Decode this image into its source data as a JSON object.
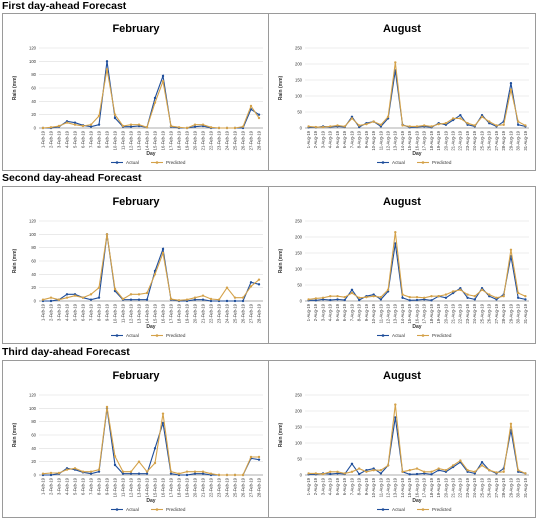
{
  "sections": [
    {
      "title": "First day-ahead Forecast"
    },
    {
      "title": "Second day-ahead Forecast"
    },
    {
      "title": "Third day-ahead Forecast"
    }
  ],
  "colors": {
    "actual": "#1f4e9b",
    "predicted": "#d4a24a",
    "grid": "#dedede",
    "axis": "#999999"
  },
  "chart_data": [
    {
      "type": "line",
      "title": "February",
      "xlabel": "Day",
      "ylabel": "Rain (mm)",
      "ylim": [
        0,
        120
      ],
      "yticks": [
        0,
        20,
        40,
        60,
        80,
        100,
        120
      ],
      "grid": true,
      "legend": "bottom",
      "categories": [
        "1-Feb-19",
        "2-Feb-19",
        "3-Feb-19",
        "4-Feb-19",
        "5-Feb-19",
        "6-Feb-19",
        "7-Feb-19",
        "8-Feb-19",
        "9-Feb-19",
        "10-Feb-19",
        "11-Feb-19",
        "12-Feb-19",
        "13-Feb-19",
        "14-Feb-19",
        "15-Feb-19",
        "16-Feb-19",
        "17-Feb-19",
        "18-Feb-19",
        "19-Feb-19",
        "20-Feb-19",
        "21-Feb-19",
        "22-Feb-19",
        "23-Feb-19",
        "24-Feb-19",
        "25-Feb-19",
        "26-Feb-19",
        "27-Feb-19",
        "28-Feb-19"
      ],
      "series": [
        {
          "name": "Actual",
          "values": [
            0,
            0,
            2,
            10,
            8,
            4,
            2,
            5,
            100,
            15,
            2,
            2,
            3,
            1,
            45,
            78,
            2,
            0,
            0,
            2,
            3,
            0,
            0,
            0,
            0,
            0,
            28,
            20
          ]
        },
        {
          "name": "Predicted",
          "values": [
            0,
            1,
            3,
            8,
            5,
            3,
            5,
            18,
            88,
            20,
            3,
            5,
            5,
            1,
            38,
            70,
            3,
            1,
            0,
            5,
            5,
            1,
            0,
            0,
            0,
            2,
            33,
            15
          ]
        }
      ]
    },
    {
      "type": "line",
      "title": "August",
      "xlabel": "Day",
      "ylabel": "Rain (mm)",
      "ylim": [
        0,
        250
      ],
      "yticks": [
        0,
        50,
        100,
        150,
        200,
        250
      ],
      "grid": true,
      "legend": "bottom",
      "categories": [
        "1-Aug-19",
        "2-Aug-19",
        "3-Aug-19",
        "4-Aug-19",
        "5-Aug-19",
        "6-Aug-19",
        "7-Aug-19",
        "8-Aug-19",
        "9-Aug-19",
        "10-Aug-19",
        "11-Aug-19",
        "12-Aug-19",
        "13-Aug-19",
        "14-Aug-19",
        "15-Aug-19",
        "16-Aug-19",
        "17-Aug-19",
        "18-Aug-19",
        "19-Aug-19",
        "20-Aug-19",
        "21-Aug-19",
        "22-Aug-19",
        "23-Aug-19",
        "24-Aug-19",
        "25-Aug-19",
        "26-Aug-19",
        "27-Aug-19",
        "28-Aug-19",
        "29-Aug-19",
        "30-Aug-19",
        "31-Aug-19"
      ],
      "series": [
        {
          "name": "Actual",
          "values": [
            2,
            2,
            5,
            3,
            5,
            3,
            35,
            3,
            15,
            20,
            5,
            30,
            180,
            10,
            2,
            3,
            5,
            2,
            15,
            10,
            25,
            40,
            10,
            5,
            40,
            15,
            5,
            20,
            140,
            10,
            5
          ]
        },
        {
          "name": "Predicted",
          "values": [
            5,
            3,
            3,
            5,
            8,
            5,
            30,
            8,
            12,
            20,
            10,
            35,
            205,
            8,
            5,
            5,
            8,
            5,
            12,
            15,
            30,
            30,
            15,
            8,
            35,
            20,
            8,
            10,
            120,
            20,
            8
          ]
        }
      ]
    },
    {
      "type": "line",
      "title": "February",
      "xlabel": "Day",
      "ylabel": "Rain (mm)",
      "ylim": [
        0,
        120
      ],
      "yticks": [
        0,
        20,
        40,
        60,
        80,
        100,
        120
      ],
      "grid": true,
      "legend": "bottom",
      "categories": [
        "1-Feb-19",
        "2-Feb-19",
        "3-Feb-19",
        "4-Feb-19",
        "5-Feb-19",
        "6-Feb-19",
        "7-Feb-19",
        "8-Feb-19",
        "9-Feb-19",
        "10-Feb-19",
        "11-Feb-19",
        "12-Feb-19",
        "13-Feb-19",
        "14-Feb-19",
        "15-Feb-19",
        "16-Feb-19",
        "17-Feb-19",
        "18-Feb-19",
        "19-Feb-19",
        "20-Feb-19",
        "21-Feb-19",
        "22-Feb-19",
        "23-Feb-19",
        "24-Feb-19",
        "25-Feb-19",
        "26-Feb-19",
        "27-Feb-19",
        "28-Feb-19"
      ],
      "series": [
        {
          "name": "Actual",
          "values": [
            0,
            0,
            2,
            10,
            10,
            5,
            2,
            5,
            100,
            15,
            2,
            2,
            2,
            2,
            45,
            78,
            2,
            0,
            0,
            2,
            2,
            0,
            0,
            0,
            0,
            0,
            28,
            25
          ]
        },
        {
          "name": "Predicted",
          "values": [
            2,
            5,
            2,
            5,
            8,
            5,
            10,
            20,
            100,
            18,
            3,
            10,
            10,
            12,
            40,
            72,
            3,
            1,
            2,
            5,
            8,
            3,
            2,
            20,
            5,
            5,
            22,
            32
          ]
        }
      ]
    },
    {
      "type": "line",
      "title": "August",
      "xlabel": "Day",
      "ylabel": "Rain (mm)",
      "ylim": [
        0,
        250
      ],
      "yticks": [
        0,
        50,
        100,
        150,
        200,
        250
      ],
      "grid": true,
      "legend": "bottom",
      "categories": [
        "1-Aug-19",
        "2-Aug-19",
        "3-Aug-19",
        "4-Aug-19",
        "5-Aug-19",
        "6-Aug-19",
        "7-Aug-19",
        "8-Aug-19",
        "9-Aug-19",
        "10-Aug-19",
        "11-Aug-19",
        "12-Aug-19",
        "13-Aug-19",
        "14-Aug-19",
        "15-Aug-19",
        "16-Aug-19",
        "17-Aug-19",
        "18-Aug-19",
        "19-Aug-19",
        "20-Aug-19",
        "21-Aug-19",
        "22-Aug-19",
        "23-Aug-19",
        "24-Aug-19",
        "25-Aug-19",
        "26-Aug-19",
        "27-Aug-19",
        "28-Aug-19",
        "29-Aug-19",
        "30-Aug-19",
        "31-Aug-19"
      ],
      "series": [
        {
          "name": "Actual",
          "values": [
            2,
            2,
            5,
            3,
            5,
            3,
            35,
            3,
            15,
            20,
            5,
            30,
            180,
            10,
            2,
            3,
            5,
            2,
            15,
            10,
            25,
            40,
            10,
            5,
            40,
            15,
            5,
            20,
            140,
            10,
            5
          ]
        },
        {
          "name": "Predicted",
          "values": [
            5,
            8,
            10,
            15,
            15,
            12,
            25,
            10,
            12,
            15,
            12,
            35,
            215,
            20,
            12,
            12,
            10,
            15,
            15,
            20,
            30,
            35,
            20,
            15,
            35,
            20,
            10,
            15,
            160,
            25,
            15
          ]
        }
      ]
    },
    {
      "type": "line",
      "title": "February",
      "xlabel": "Day",
      "ylabel": "Rain (mm)",
      "ylim": [
        0,
        120
      ],
      "yticks": [
        0,
        20,
        40,
        60,
        80,
        100,
        120
      ],
      "grid": true,
      "legend": "bottom",
      "categories": [
        "1-Feb-19",
        "2-Feb-19",
        "3-Feb-19",
        "4-Feb-19",
        "5-Feb-19",
        "6-Feb-19",
        "7-Feb-19",
        "8-Feb-19",
        "9-Feb-19",
        "10-Feb-19",
        "11-Feb-19",
        "12-Feb-19",
        "13-Feb-19",
        "14-Feb-19",
        "15-Feb-19",
        "16-Feb-19",
        "17-Feb-19",
        "18-Feb-19",
        "19-Feb-19",
        "20-Feb-19",
        "21-Feb-19",
        "22-Feb-19",
        "23-Feb-19",
        "24-Feb-19",
        "25-Feb-19",
        "26-Feb-19",
        "27-Feb-19",
        "28-Feb-19"
      ],
      "series": [
        {
          "name": "Actual",
          "values": [
            0,
            0,
            2,
            10,
            8,
            4,
            2,
            5,
            100,
            15,
            2,
            2,
            2,
            2,
            40,
            78,
            2,
            0,
            0,
            2,
            2,
            0,
            0,
            0,
            0,
            0,
            25,
            23
          ]
        },
        {
          "name": "Predicted",
          "values": [
            2,
            3,
            3,
            8,
            10,
            5,
            5,
            8,
            102,
            28,
            5,
            5,
            20,
            5,
            18,
            92,
            5,
            2,
            5,
            5,
            5,
            2,
            0,
            0,
            0,
            0,
            27,
            27
          ]
        }
      ]
    },
    {
      "type": "line",
      "title": "August",
      "xlabel": "Day",
      "ylabel": "Rain (mm)",
      "ylim": [
        0,
        250
      ],
      "yticks": [
        0,
        50,
        100,
        150,
        200,
        250
      ],
      "grid": true,
      "legend": "bottom",
      "categories": [
        "1-Aug-19",
        "2-Aug-19",
        "3-Aug-19",
        "4-Aug-19",
        "5-Aug-19",
        "6-Aug-19",
        "7-Aug-19",
        "8-Aug-19",
        "9-Aug-19",
        "10-Aug-19",
        "11-Aug-19",
        "12-Aug-19",
        "13-Aug-19",
        "14-Aug-19",
        "15-Aug-19",
        "16-Aug-19",
        "17-Aug-19",
        "18-Aug-19",
        "19-Aug-19",
        "20-Aug-19",
        "21-Aug-19",
        "22-Aug-19",
        "23-Aug-19",
        "24-Aug-19",
        "25-Aug-19",
        "26-Aug-19",
        "27-Aug-19",
        "28-Aug-19",
        "29-Aug-19",
        "30-Aug-19",
        "31-Aug-19"
      ],
      "series": [
        {
          "name": "Actual",
          "values": [
            2,
            2,
            5,
            3,
            5,
            3,
            35,
            3,
            15,
            20,
            5,
            30,
            180,
            10,
            2,
            3,
            5,
            2,
            15,
            10,
            25,
            40,
            10,
            5,
            40,
            15,
            5,
            20,
            140,
            10,
            5
          ]
        },
        {
          "name": "Predicted",
          "values": [
            5,
            5,
            3,
            10,
            10,
            5,
            10,
            20,
            10,
            15,
            15,
            30,
            220,
            10,
            15,
            20,
            10,
            10,
            20,
            15,
            30,
            45,
            15,
            10,
            30,
            15,
            8,
            10,
            160,
            15,
            5
          ]
        }
      ]
    }
  ]
}
